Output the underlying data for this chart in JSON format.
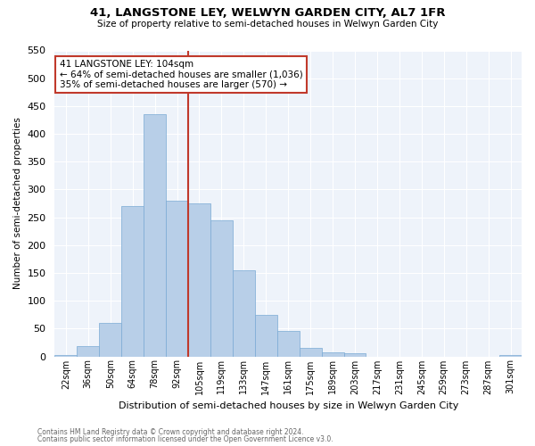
{
  "title": "41, LANGSTONE LEY, WELWYN GARDEN CITY, AL7 1FR",
  "subtitle": "Size of property relative to semi-detached houses in Welwyn Garden City",
  "xlabel": "Distribution of semi-detached houses by size in Welwyn Garden City",
  "ylabel": "Number of semi-detached properties",
  "footnote1": "Contains HM Land Registry data © Crown copyright and database right 2024.",
  "footnote2": "Contains public sector information licensed under the Open Government Licence v3.0.",
  "annotation_line1": "41 LANGSTONE LEY: 104sqm",
  "annotation_line2": "← 64% of semi-detached houses are smaller (1,036)",
  "annotation_line3": "35% of semi-detached houses are larger (570) →",
  "redline_index": 6,
  "categories": [
    "22sqm",
    "36sqm",
    "50sqm",
    "64sqm",
    "78sqm",
    "92sqm",
    "105sqm",
    "119sqm",
    "133sqm",
    "147sqm",
    "161sqm",
    "175sqm",
    "189sqm",
    "203sqm",
    "217sqm",
    "231sqm",
    "245sqm",
    "259sqm",
    "273sqm",
    "287sqm",
    "301sqm"
  ],
  "values": [
    2,
    18,
    60,
    270,
    435,
    280,
    275,
    245,
    155,
    75,
    45,
    15,
    8,
    5,
    0,
    0,
    0,
    0,
    0,
    0,
    2
  ],
  "bar_color": "#b8cfe8",
  "bar_edge_color": "#7aaad4",
  "redline_color": "#c0392b",
  "annotation_box_color": "#c0392b",
  "ylim": [
    0,
    550
  ],
  "yticks": [
    0,
    50,
    100,
    150,
    200,
    250,
    300,
    350,
    400,
    450,
    500,
    550
  ],
  "bg_color": "#eef3fa"
}
